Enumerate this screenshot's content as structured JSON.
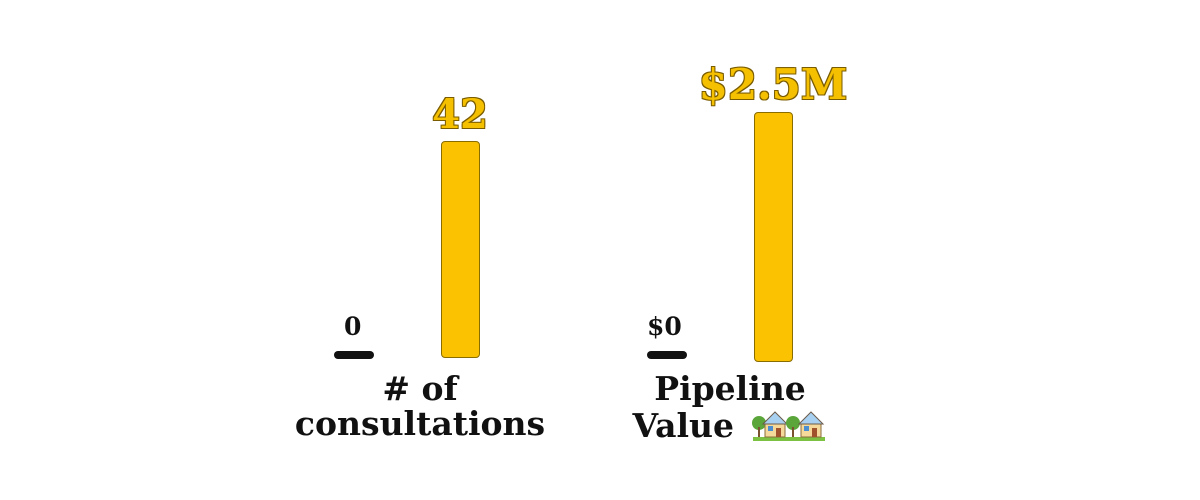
{
  "colors": {
    "bar": "#fac200",
    "value_label": "#f5c000",
    "value_label_outline": "#7a5c00",
    "text": "#111111"
  },
  "chart_data": [
    {
      "type": "bar",
      "categories": [
        "# of consultations"
      ],
      "values": [
        42
      ],
      "ylim": [
        0,
        42
      ],
      "axis_zero_label": "0",
      "value_label": "42",
      "category_label_lines": [
        "# of",
        "consultations"
      ],
      "icon": null
    },
    {
      "type": "bar",
      "categories": [
        "Pipeline Value"
      ],
      "values": [
        2500000
      ],
      "ylim": [
        0,
        2500000
      ],
      "axis_zero_label": "$0",
      "value_label": "$2.5M",
      "category_label_lines": [
        "Pipeline",
        "Value"
      ],
      "icon": "houses-icon"
    }
  ]
}
